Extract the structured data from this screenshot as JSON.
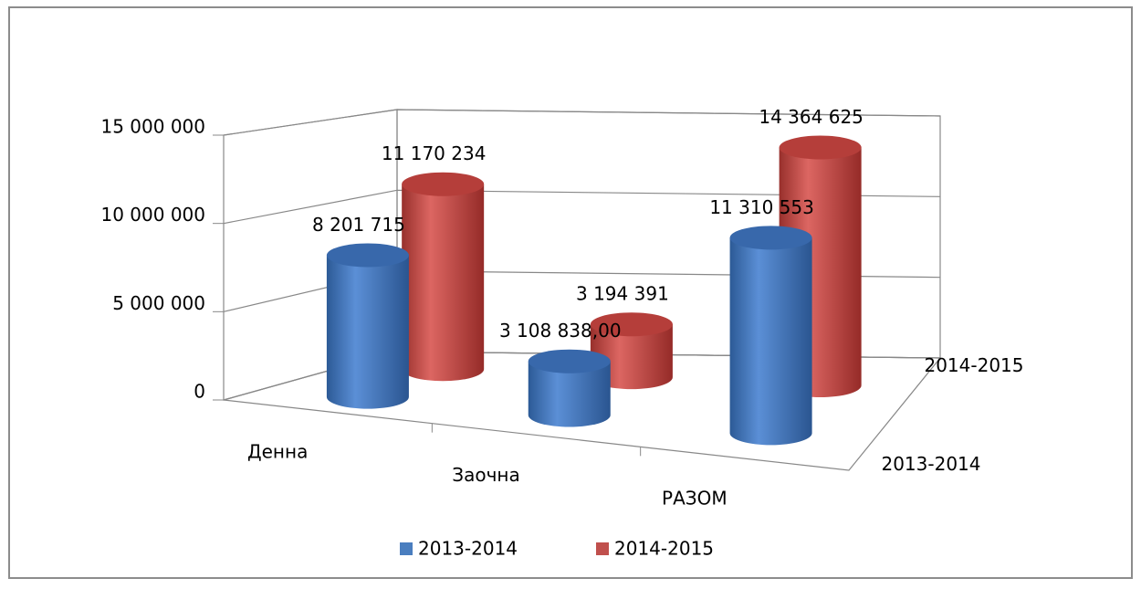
{
  "chart_data": {
    "type": "bar3d",
    "categories": [
      "Денна",
      "Заочна",
      "РАЗОМ"
    ],
    "series": [
      {
        "name": "2013-2014",
        "color": "#4a7ebf",
        "values": [
          8201715,
          3108838,
          11310553
        ],
        "value_labels": [
          "8 201 715",
          "3 108 838,00",
          "11 310 553"
        ]
      },
      {
        "name": "2014-2015",
        "color": "#c0504d",
        "values": [
          11170234,
          3194391,
          14364625
        ],
        "value_labels": [
          "11 170 234",
          "3 194 391",
          "14 364 625"
        ]
      }
    ],
    "ylim": [
      0,
      15000000
    ],
    "yticks": [
      0,
      {
        "value": 5000000,
        "label": "5 000 000"
      },
      {
        "value": 10000000,
        "label": "10 000 000"
      },
      {
        "value": 15000000,
        "label": "15 000 000"
      }
    ],
    "grid": true,
    "legend": "bottom"
  }
}
